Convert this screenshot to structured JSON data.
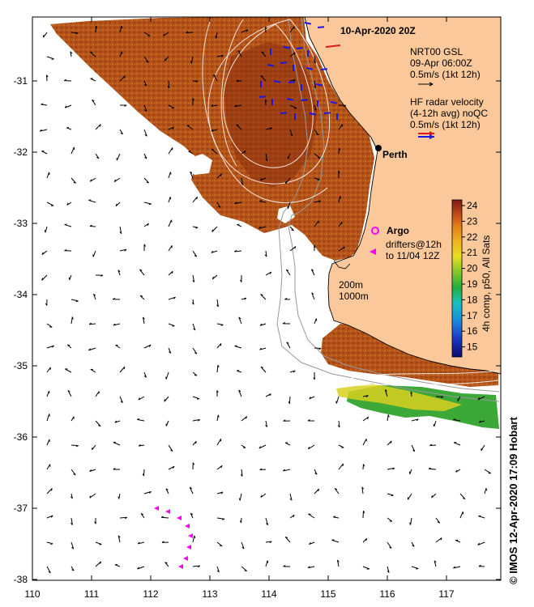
{
  "title": "10-Apr-2020 20Z",
  "legend": {
    "gsl_line1": "NRT00 GSL",
    "gsl_line2": "09-Apr 06:00Z",
    "gsl_line3": "0.5m/s (1kt 12h)",
    "radar_line1": "HF radar velocity",
    "radar_line2": "(4-12h avg) noQC",
    "radar_line3": "0.5m/s (1kt 12h)",
    "argo_label": "Argo",
    "drifter_line1": "drifters@12h",
    "drifter_line2": "to 11/04 12Z",
    "isobath_1": "200m",
    "isobath_2": "1000m"
  },
  "place": {
    "name": "Perth",
    "lon": 115.86,
    "lat": -31.95
  },
  "colorbar": {
    "label": "4h comp, p50, All Sats",
    "ticks": [
      "24",
      "23",
      "22",
      "21",
      "20",
      "19",
      "18",
      "17",
      "16",
      "15"
    ],
    "min": 14.5,
    "max": 24.5
  },
  "axes": {
    "x_ticks": [
      "110",
      "111",
      "112",
      "113",
      "114",
      "115",
      "116",
      "117"
    ],
    "y_ticks": [
      "-31",
      "-32",
      "-33",
      "-34",
      "-35",
      "-36",
      "-37",
      "-38"
    ],
    "lon_range": [
      110,
      117.9
    ],
    "lat_range": [
      -38,
      -30.2
    ]
  },
  "credit": "© IMOS 12-Apr-2020 17:09 Hobart",
  "colors": {
    "land": "#fac89a",
    "sst_warm": "#b04a12",
    "radar_east": "#e01818",
    "radar_north": "#1818e0",
    "argo": "#ff00ff"
  }
}
